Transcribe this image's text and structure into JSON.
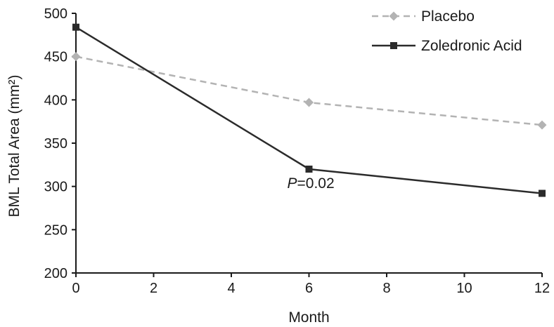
{
  "chart_data": {
    "type": "line",
    "xlabel": "Month",
    "ylabel": "BML Total Area (mm²)",
    "xlim": [
      0,
      12
    ],
    "ylim": [
      200,
      500
    ],
    "x_ticks": [
      0,
      2,
      4,
      6,
      8,
      10,
      12
    ],
    "y_ticks": [
      200,
      250,
      300,
      350,
      400,
      450,
      500
    ],
    "grid": false,
    "legend_position": "top-right",
    "series": [
      {
        "name": "Placebo",
        "x": [
          0,
          6,
          12
        ],
        "y": [
          450,
          397,
          371
        ],
        "color": "#b3b3b3",
        "line_style": "dashed",
        "marker": "diamond"
      },
      {
        "name": "Zoledronic Acid",
        "x": [
          0,
          6,
          12
        ],
        "y": [
          484,
          320,
          292
        ],
        "color": "#2b2b2b",
        "line_style": "solid",
        "marker": "square"
      }
    ],
    "annotations": [
      {
        "italic": "P",
        "rest": "=0.02",
        "x": 6,
        "y": 298
      }
    ]
  }
}
